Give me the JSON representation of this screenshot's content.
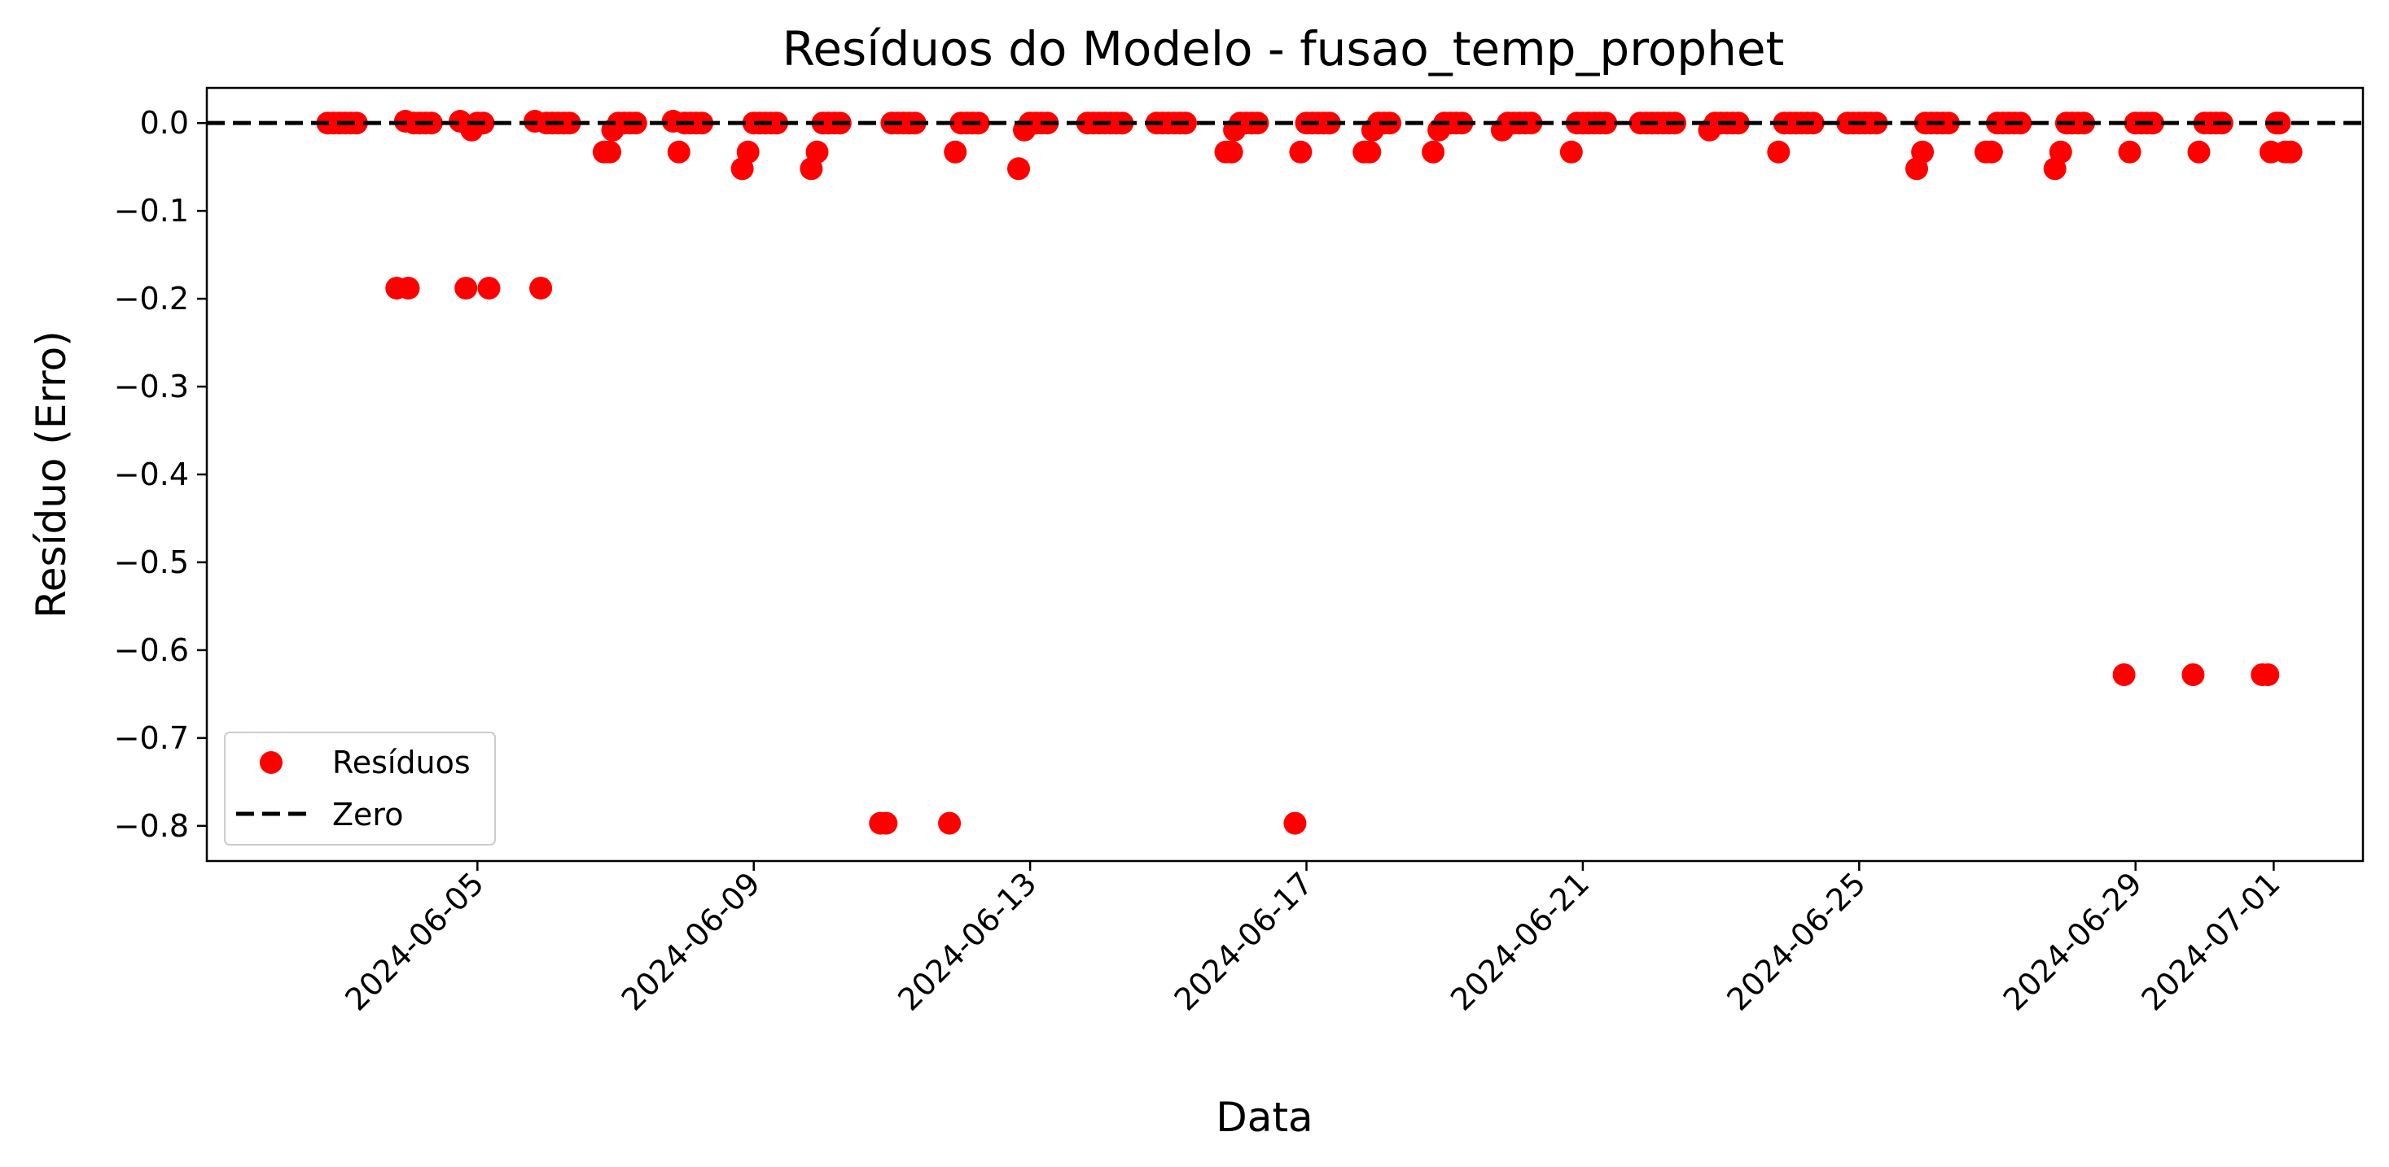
{
  "chart_data": {
    "type": "scatter",
    "title": "Resíduos do Modelo - fusao_temp_prophet",
    "xlabel": "Data",
    "ylabel": "Resíduo (Erro)",
    "x_type": "datetime",
    "xlim": [
      "2024-06-01T02:00",
      "2024-07-02T07:00"
    ],
    "ylim": [
      -0.84,
      0.04
    ],
    "x_ticks": [
      "2024-06-05",
      "2024-06-09",
      "2024-06-13",
      "2024-06-17",
      "2024-06-21",
      "2024-06-25",
      "2024-06-29",
      "2024-07-01"
    ],
    "y_ticks": [
      "0.0",
      "−0.1",
      "−0.2",
      "−0.3",
      "−0.4",
      "−0.5",
      "−0.6",
      "−0.7",
      "−0.8"
    ],
    "grid": false,
    "legend_position": "lower-left",
    "series": [
      {
        "name": "Resíduos",
        "kind": "scatter",
        "color": "#ff0000",
        "points": [
          [
            "2024-06-02T20:00",
            0
          ],
          [
            "2024-06-02T22:00",
            0
          ],
          [
            "2024-06-03T00:00",
            0
          ],
          [
            "2024-06-03T02:00",
            0
          ],
          [
            "2024-06-03T04:00",
            0
          ],
          [
            "2024-06-03T06:00",
            0
          ],
          [
            "2024-06-03T20:00",
            -0.188
          ],
          [
            "2024-06-03T23:00",
            0.002
          ],
          [
            "2024-06-04T00:00",
            -0.188
          ],
          [
            "2024-06-04T02:00",
            0
          ],
          [
            "2024-06-04T04:00",
            0
          ],
          [
            "2024-06-04T06:00",
            0
          ],
          [
            "2024-06-04T08:00",
            0
          ],
          [
            "2024-06-04T18:00",
            0.002
          ],
          [
            "2024-06-04T20:00",
            -0.188
          ],
          [
            "2024-06-04T22:00",
            -0.008
          ],
          [
            "2024-06-05T00:00",
            0
          ],
          [
            "2024-06-05T02:00",
            0
          ],
          [
            "2024-06-05T04:00",
            -0.188
          ],
          [
            "2024-06-05T20:00",
            0.002
          ],
          [
            "2024-06-05T22:00",
            -0.188
          ],
          [
            "2024-06-06T00:00",
            0
          ],
          [
            "2024-06-06T02:00",
            0
          ],
          [
            "2024-06-06T04:00",
            0
          ],
          [
            "2024-06-06T06:00",
            0
          ],
          [
            "2024-06-06T08:00",
            0
          ],
          [
            "2024-06-06T20:00",
            -0.033
          ],
          [
            "2024-06-06T22:00",
            -0.033
          ],
          [
            "2024-06-06T23:00",
            -0.008
          ],
          [
            "2024-06-07T01:00",
            0
          ],
          [
            "2024-06-07T03:00",
            0
          ],
          [
            "2024-06-07T05:00",
            0
          ],
          [
            "2024-06-07T07:00",
            0
          ],
          [
            "2024-06-07T20:00",
            0.002
          ],
          [
            "2024-06-07T22:00",
            -0.033
          ],
          [
            "2024-06-08T00:00",
            0
          ],
          [
            "2024-06-08T02:00",
            0
          ],
          [
            "2024-06-08T04:00",
            0
          ],
          [
            "2024-06-08T06:00",
            0
          ],
          [
            "2024-06-08T20:00",
            -0.052
          ],
          [
            "2024-06-08T22:00",
            -0.033
          ],
          [
            "2024-06-09T00:00",
            0
          ],
          [
            "2024-06-09T02:00",
            0
          ],
          [
            "2024-06-09T04:00",
            0
          ],
          [
            "2024-06-09T06:00",
            0
          ],
          [
            "2024-06-09T08:00",
            0
          ],
          [
            "2024-06-09T20:00",
            -0.052
          ],
          [
            "2024-06-09T22:00",
            -0.033
          ],
          [
            "2024-06-10T00:00",
            0
          ],
          [
            "2024-06-10T02:00",
            0
          ],
          [
            "2024-06-10T04:00",
            0
          ],
          [
            "2024-06-10T06:00",
            0
          ],
          [
            "2024-06-10T20:00",
            -0.797
          ],
          [
            "2024-06-10T22:00",
            -0.797
          ],
          [
            "2024-06-11T00:00",
            0
          ],
          [
            "2024-06-11T02:00",
            0
          ],
          [
            "2024-06-11T04:00",
            0
          ],
          [
            "2024-06-11T06:00",
            0
          ],
          [
            "2024-06-11T08:00",
            0
          ],
          [
            "2024-06-11T20:00",
            -0.797
          ],
          [
            "2024-06-11T22:00",
            -0.033
          ],
          [
            "2024-06-12T00:00",
            0
          ],
          [
            "2024-06-12T02:00",
            0
          ],
          [
            "2024-06-12T04:00",
            0
          ],
          [
            "2024-06-12T06:00",
            0
          ],
          [
            "2024-06-12T20:00",
            -0.052
          ],
          [
            "2024-06-12T22:00",
            -0.008
          ],
          [
            "2024-06-13T00:00",
            0
          ],
          [
            "2024-06-13T02:00",
            0
          ],
          [
            "2024-06-13T04:00",
            0
          ],
          [
            "2024-06-13T06:00",
            0
          ],
          [
            "2024-06-13T20:00",
            0
          ],
          [
            "2024-06-13T22:00",
            0
          ],
          [
            "2024-06-14T00:00",
            0
          ],
          [
            "2024-06-14T02:00",
            0
          ],
          [
            "2024-06-14T04:00",
            0
          ],
          [
            "2024-06-14T06:00",
            0
          ],
          [
            "2024-06-14T08:00",
            0
          ],
          [
            "2024-06-14T20:00",
            0
          ],
          [
            "2024-06-14T22:00",
            0
          ],
          [
            "2024-06-15T00:00",
            0
          ],
          [
            "2024-06-15T02:00",
            0
          ],
          [
            "2024-06-15T04:00",
            0
          ],
          [
            "2024-06-15T06:00",
            0
          ],
          [
            "2024-06-15T20:00",
            -0.033
          ],
          [
            "2024-06-15T22:00",
            -0.033
          ],
          [
            "2024-06-15T23:00",
            -0.008
          ],
          [
            "2024-06-16T01:00",
            0
          ],
          [
            "2024-06-16T03:00",
            0
          ],
          [
            "2024-06-16T05:00",
            0
          ],
          [
            "2024-06-16T07:00",
            0
          ],
          [
            "2024-06-16T20:00",
            -0.797
          ],
          [
            "2024-06-16T22:00",
            -0.033
          ],
          [
            "2024-06-17T00:00",
            0
          ],
          [
            "2024-06-17T02:00",
            0
          ],
          [
            "2024-06-17T04:00",
            0
          ],
          [
            "2024-06-17T06:00",
            0
          ],
          [
            "2024-06-17T08:00",
            0
          ],
          [
            "2024-06-17T20:00",
            -0.033
          ],
          [
            "2024-06-17T22:00",
            -0.033
          ],
          [
            "2024-06-17T23:00",
            -0.008
          ],
          [
            "2024-06-18T01:00",
            0
          ],
          [
            "2024-06-18T03:00",
            0
          ],
          [
            "2024-06-18T05:00",
            0
          ],
          [
            "2024-06-18T20:00",
            -0.033
          ],
          [
            "2024-06-18T22:00",
            -0.008
          ],
          [
            "2024-06-19T00:00",
            0
          ],
          [
            "2024-06-19T02:00",
            0
          ],
          [
            "2024-06-19T04:00",
            0
          ],
          [
            "2024-06-19T06:00",
            0
          ],
          [
            "2024-06-19T20:00",
            -0.008
          ],
          [
            "2024-06-19T22:00",
            0
          ],
          [
            "2024-06-20T00:00",
            0
          ],
          [
            "2024-06-20T02:00",
            0
          ],
          [
            "2024-06-20T04:00",
            0
          ],
          [
            "2024-06-20T06:00",
            0
          ],
          [
            "2024-06-20T20:00",
            -0.033
          ],
          [
            "2024-06-20T22:00",
            0
          ],
          [
            "2024-06-21T00:00",
            0
          ],
          [
            "2024-06-21T02:00",
            0
          ],
          [
            "2024-06-21T04:00",
            0
          ],
          [
            "2024-06-21T06:00",
            0
          ],
          [
            "2024-06-21T08:00",
            0
          ],
          [
            "2024-06-21T20:00",
            0
          ],
          [
            "2024-06-21T22:00",
            0
          ],
          [
            "2024-06-22T00:00",
            0
          ],
          [
            "2024-06-22T02:00",
            0
          ],
          [
            "2024-06-22T04:00",
            0
          ],
          [
            "2024-06-22T06:00",
            0
          ],
          [
            "2024-06-22T08:00",
            0
          ],
          [
            "2024-06-22T20:00",
            -0.008
          ],
          [
            "2024-06-22T22:00",
            0
          ],
          [
            "2024-06-23T00:00",
            0
          ],
          [
            "2024-06-23T02:00",
            0
          ],
          [
            "2024-06-23T04:00",
            0
          ],
          [
            "2024-06-23T06:00",
            0
          ],
          [
            "2024-06-23T20:00",
            -0.033
          ],
          [
            "2024-06-23T22:00",
            0
          ],
          [
            "2024-06-24T00:00",
            0
          ],
          [
            "2024-06-24T02:00",
            0
          ],
          [
            "2024-06-24T04:00",
            0
          ],
          [
            "2024-06-24T06:00",
            0
          ],
          [
            "2024-06-24T08:00",
            0
          ],
          [
            "2024-06-24T20:00",
            0
          ],
          [
            "2024-06-24T22:00",
            0
          ],
          [
            "2024-06-25T00:00",
            0
          ],
          [
            "2024-06-25T02:00",
            0
          ],
          [
            "2024-06-25T04:00",
            0
          ],
          [
            "2024-06-25T06:00",
            0
          ],
          [
            "2024-06-25T20:00",
            -0.052
          ],
          [
            "2024-06-25T22:00",
            -0.033
          ],
          [
            "2024-06-25T23:00",
            0
          ],
          [
            "2024-06-26T01:00",
            0
          ],
          [
            "2024-06-26T03:00",
            0
          ],
          [
            "2024-06-26T05:00",
            0
          ],
          [
            "2024-06-26T07:00",
            0
          ],
          [
            "2024-06-26T20:00",
            -0.033
          ],
          [
            "2024-06-26T22:00",
            -0.033
          ],
          [
            "2024-06-27T00:00",
            0
          ],
          [
            "2024-06-27T02:00",
            0
          ],
          [
            "2024-06-27T04:00",
            0
          ],
          [
            "2024-06-27T06:00",
            0
          ],
          [
            "2024-06-27T08:00",
            0
          ],
          [
            "2024-06-27T20:00",
            -0.052
          ],
          [
            "2024-06-27T22:00",
            -0.033
          ],
          [
            "2024-06-28T00:00",
            0
          ],
          [
            "2024-06-28T02:00",
            0
          ],
          [
            "2024-06-28T04:00",
            0
          ],
          [
            "2024-06-28T06:00",
            0
          ],
          [
            "2024-06-28T20:00",
            -0.628
          ],
          [
            "2024-06-28T22:00",
            -0.033
          ],
          [
            "2024-06-29T00:00",
            0
          ],
          [
            "2024-06-29T02:00",
            0
          ],
          [
            "2024-06-29T04:00",
            0
          ],
          [
            "2024-06-29T06:00",
            0
          ],
          [
            "2024-06-29T20:00",
            -0.628
          ],
          [
            "2024-06-29T22:00",
            -0.033
          ],
          [
            "2024-06-30T00:00",
            0
          ],
          [
            "2024-06-30T02:00",
            0
          ],
          [
            "2024-06-30T04:00",
            0
          ],
          [
            "2024-06-30T06:00",
            0
          ],
          [
            "2024-06-30T20:00",
            -0.628
          ],
          [
            "2024-06-30T22:00",
            -0.628
          ],
          [
            "2024-06-30T23:00",
            -0.033
          ],
          [
            "2024-07-01T01:00",
            0
          ],
          [
            "2024-07-01T02:00",
            0
          ],
          [
            "2024-07-01T04:00",
            -0.033
          ],
          [
            "2024-07-01T06:00",
            -0.033
          ]
        ]
      },
      {
        "name": "Zero",
        "kind": "hline",
        "y": 0,
        "color": "#000000",
        "dashed": true
      }
    ]
  }
}
